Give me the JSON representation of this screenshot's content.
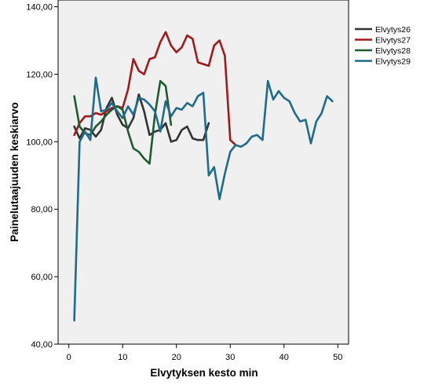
{
  "chart_data": {
    "type": "line",
    "title": "",
    "xlabel": "Elvytyksen kesto min",
    "ylabel": "Painelutaajuuden keskiarvo",
    "xlim": [
      -2,
      52
    ],
    "ylim": [
      40,
      142
    ],
    "x_ticks": [
      0,
      10,
      20,
      30,
      40,
      50
    ],
    "x_tick_labels": [
      "0",
      "10",
      "20",
      "30",
      "40",
      "50"
    ],
    "y_ticks": [
      40,
      60,
      80,
      100,
      120,
      140
    ],
    "y_tick_labels": [
      "40,00",
      "60,00",
      "80,00",
      "100,00",
      "120,00",
      "140,00"
    ],
    "grid": false,
    "legend_position": "top-right, outside plot",
    "series": [
      {
        "name": "Elvytys26",
        "color": "#333333",
        "x": [
          1,
          2,
          3,
          4,
          5,
          6,
          7,
          8,
          9,
          10,
          11,
          12,
          13,
          14,
          15,
          16,
          17,
          18,
          19,
          20,
          21,
          22,
          23,
          24,
          25,
          26
        ],
        "y": [
          104.5,
          101.0,
          104.0,
          103.5,
          101.5,
          103.5,
          110.0,
          113.0,
          108.0,
          105.0,
          104.0,
          107.0,
          114.0,
          109.0,
          102.0,
          103.0,
          103.5,
          105.5,
          100.0,
          100.5,
          103.5,
          104.5,
          101.0,
          100.5,
          100.5,
          105.5
        ]
      },
      {
        "name": "Elvytys27",
        "color": "#9e1b1b",
        "x": [
          1,
          2,
          3,
          4,
          5,
          6,
          7,
          8,
          9,
          10,
          11,
          12,
          13,
          14,
          15,
          16,
          17,
          18,
          19,
          20,
          21,
          22,
          23,
          24,
          25,
          26,
          27,
          28,
          29,
          30,
          31
        ],
        "y": [
          102.0,
          105.5,
          107.5,
          107.5,
          108.5,
          108.0,
          109.0,
          110.0,
          110.5,
          110.0,
          115.5,
          124.5,
          121.0,
          120.0,
          124.5,
          125.0,
          129.5,
          132.5,
          128.5,
          126.5,
          128.0,
          131.5,
          130.5,
          123.5,
          123.0,
          122.5,
          128.5,
          130.0,
          125.5,
          100.5,
          99.0
        ]
      },
      {
        "name": "Elvytys28",
        "color": "#1e5b2e",
        "x": [
          1,
          2,
          3,
          4,
          5,
          6,
          7,
          8,
          9,
          10,
          11,
          12,
          13,
          14,
          15,
          16,
          17,
          18,
          19
        ],
        "y": [
          113.5,
          104.5,
          102.5,
          102.0,
          104.5,
          106.0,
          108.0,
          109.5,
          110.5,
          109.5,
          103.0,
          98.0,
          97.0,
          95.0,
          93.5,
          108.0,
          118.0,
          116.5,
          105.0
        ]
      },
      {
        "name": "Elvytys29",
        "color": "#1f6b8a",
        "x": [
          1,
          2,
          3,
          4,
          5,
          6,
          7,
          8,
          9,
          10,
          11,
          12,
          13,
          14,
          15,
          16,
          17,
          18,
          19,
          20,
          21,
          22,
          23,
          24,
          25,
          26,
          27,
          28,
          29,
          30,
          31,
          32,
          33,
          34,
          35,
          36,
          37,
          38,
          39,
          40,
          41,
          42,
          43,
          44,
          45,
          46,
          47,
          48,
          49
        ],
        "y": [
          47.0,
          100.0,
          103.0,
          100.5,
          119.0,
          109.0,
          109.5,
          111.5,
          109.0,
          107.0,
          110.5,
          108.0,
          113.0,
          112.5,
          111.0,
          109.0,
          103.0,
          112.0,
          107.5,
          110.0,
          109.5,
          111.5,
          110.5,
          113.5,
          114.5,
          90.0,
          92.5,
          83.0,
          90.5,
          97.0,
          99.0,
          98.5,
          99.5,
          101.5,
          102.0,
          100.5,
          118.0,
          112.5,
          115.0,
          113.0,
          112.0,
          108.5,
          106.0,
          106.5,
          99.5,
          106.0,
          108.5,
          113.5,
          112.0
        ]
      }
    ]
  }
}
